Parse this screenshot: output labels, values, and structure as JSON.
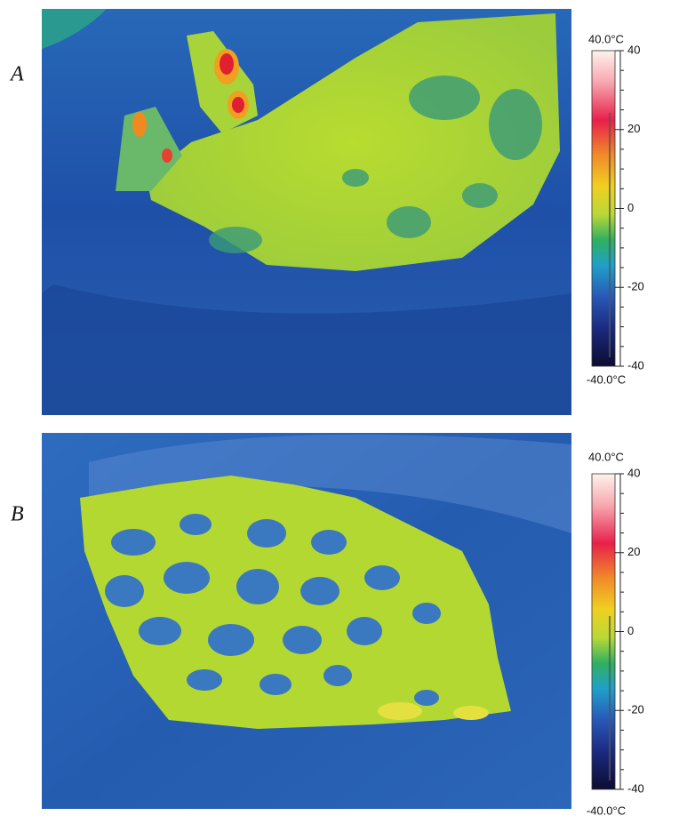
{
  "panels": [
    {
      "label": "A",
      "scale_max_label": "40.0°C",
      "scale_min_label": "-40.0°C",
      "ticks": [
        40,
        20,
        0,
        -20,
        -40
      ]
    },
    {
      "label": "B",
      "scale_max_label": "40.0°C",
      "scale_min_label": "-40.0°C",
      "ticks": [
        40,
        20,
        0,
        -20,
        -40
      ]
    }
  ]
}
